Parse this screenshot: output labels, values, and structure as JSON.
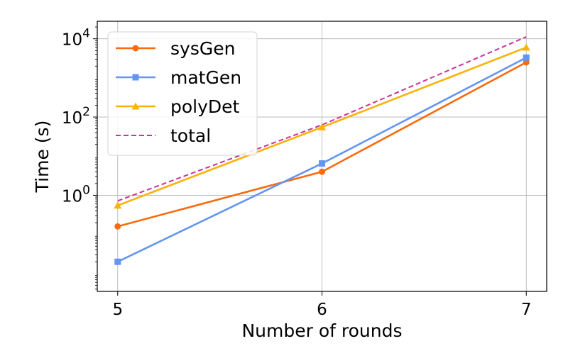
{
  "chart_data": {
    "type": "line",
    "xlabel": "Number of rounds",
    "ylabel": "Time (s)",
    "x": [
      5,
      6,
      7
    ],
    "x_ticks": [
      "5",
      "6",
      "7"
    ],
    "xlim": [
      4.9,
      7.1
    ],
    "y_scale": "log",
    "ylim": [
      0.0035,
      28000
    ],
    "y_ticks": [
      {
        "value": 1,
        "base": "10",
        "exp": "0"
      },
      {
        "value": 100,
        "base": "10",
        "exp": "2"
      },
      {
        "value": 10000,
        "base": "10",
        "exp": "4"
      }
    ],
    "grid": true,
    "legend_position": "top-left",
    "series": [
      {
        "name": "sysGen",
        "color": "#f96b0f",
        "marker": "circle",
        "dash": "solid",
        "values": [
          0.16,
          4.0,
          2500
        ]
      },
      {
        "name": "matGen",
        "color": "#6495f0",
        "marker": "square",
        "dash": "solid",
        "values": [
          0.02,
          6.5,
          3300
        ]
      },
      {
        "name": "polyDet",
        "color": "#fbb20b",
        "marker": "triangle",
        "dash": "solid",
        "values": [
          0.55,
          55,
          6000
        ]
      },
      {
        "name": "total",
        "color": "#c9339a",
        "marker": "none",
        "dash": "dashed",
        "values": [
          0.72,
          63,
          11200
        ]
      }
    ]
  }
}
